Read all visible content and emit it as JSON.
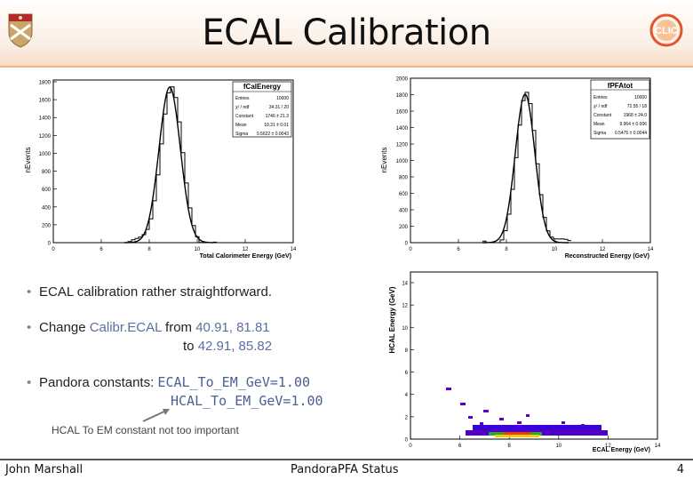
{
  "header": {
    "title": "ECAL Calibration"
  },
  "plots": {
    "left": {
      "name": "fCalEnergy",
      "ylabel": "nEvents",
      "xlabel": "Total Calorimeter Energy (GeV)",
      "yticks": [
        "1800",
        "1600",
        "1400",
        "1200",
        "1000",
        "800",
        "600",
        "400",
        "200",
        "0"
      ],
      "xticks": [
        "0",
        "6",
        "8",
        "10",
        "12",
        "14"
      ],
      "stats": [
        {
          "k": "Entries",
          "v": "10000"
        },
        {
          "k": "χ² / ndf",
          "v": "34.31 / 20"
        },
        {
          "k": "Constant",
          "v": "1746 ± 21.3"
        },
        {
          "k": "Mean",
          "v": "10.31 ± 0.01"
        },
        {
          "k": "Sigma",
          "v": "0.5622 ± 0.0043"
        }
      ]
    },
    "right": {
      "name": "fPFAtot",
      "ylabel": "nEvents",
      "xlabel": "Reconstructed Energy (GeV)",
      "yticks": [
        "2000",
        "1800",
        "1600",
        "1400",
        "1200",
        "1000",
        "800",
        "600",
        "400",
        "200",
        "0"
      ],
      "xticks": [
        "0",
        "6",
        "8",
        "10",
        "12",
        "14"
      ],
      "stats": [
        {
          "k": "Entries",
          "v": "10000"
        },
        {
          "k": "χ² / ndf",
          "v": "72.55 / 18"
        },
        {
          "k": "Constant",
          "v": "1968 ± 24.0"
        },
        {
          "k": "Mean",
          "v": "9.964 ± 0.006"
        },
        {
          "k": "Sigma",
          "v": "0.5475 ± 0.0044"
        }
      ]
    },
    "scatter": {
      "ylabel": "HCAL Energy (GeV)",
      "xlabel": "ECAL Energy (GeV)",
      "yticks": [
        "14",
        "12",
        "10",
        "8",
        "6",
        "4",
        "2",
        "0"
      ],
      "xticks": [
        "0",
        "6",
        "8",
        "10",
        "12",
        "14"
      ]
    }
  },
  "bullets": {
    "b1": "ECAL calibration rather straightforward.",
    "b2_pre": "Change ",
    "b2_name": "Calibr.ECAL",
    "b2_mid": " from ",
    "b2_from": "40.91, 81.81",
    "b2_to_pre": "to ",
    "b2_to": "42.91, 85.82",
    "b3_pre": "Pandora constants: ",
    "b3_l1": "ECAL_To_EM_GeV=1.00",
    "b3_l2": "HCAL_To_EM_GeV=1.00",
    "bullet_char": "•"
  },
  "note": "HCAL To EM constant not too important",
  "footer": {
    "author": "John Marshall",
    "center": "PandoraPFA Status",
    "page": "4"
  },
  "colors": {
    "accent": "#e9b893",
    "text_highlight": "#5a6fa0"
  }
}
